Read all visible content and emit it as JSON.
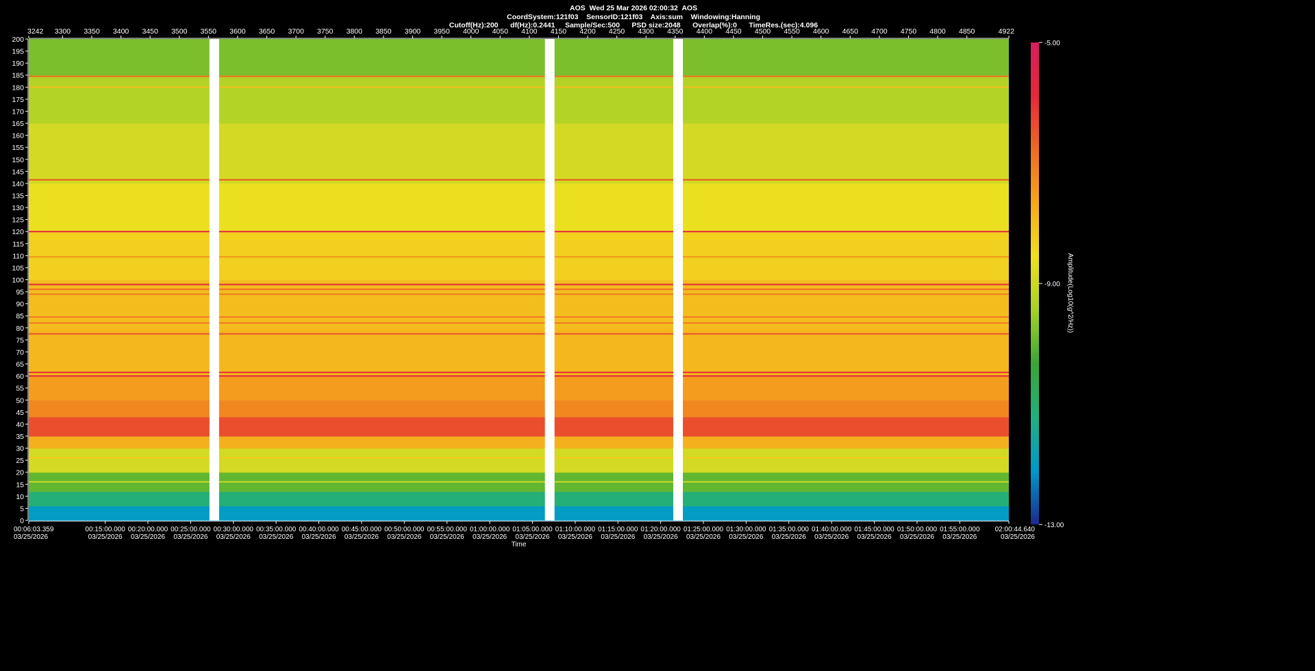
{
  "header": {
    "line1": "AOS  Wed 25 Mar 2026 02:00:32  AOS",
    "line2": "CoordSystem:121f03    SensorID:121f03    Axis:sum    Windowing:Hanning",
    "line3": "Cutoff(Hz):200      df(Hz):0.2441     Sample/Sec:500      PSD size:2048      Overlap(%):0      TimeRes.(sec):4.096"
  },
  "chart_data": {
    "type": "heatmap",
    "title": "AOS  Wed 25 Mar 2026 02:00:32  AOS",
    "ylim": [
      0,
      200
    ],
    "y_ticks": [
      0,
      5,
      10,
      15,
      20,
      25,
      30,
      35,
      40,
      45,
      50,
      55,
      60,
      65,
      70,
      75,
      80,
      85,
      90,
      95,
      100,
      105,
      110,
      115,
      120,
      125,
      130,
      135,
      140,
      145,
      150,
      155,
      160,
      165,
      170,
      175,
      180,
      185,
      190,
      195,
      200
    ],
    "top_axis": {
      "range": [
        3242,
        4922
      ],
      "ticks": [
        3300,
        3350,
        3400,
        3450,
        3500,
        3550,
        3600,
        3650,
        3700,
        3750,
        3800,
        3850,
        3900,
        3950,
        4000,
        4050,
        4100,
        4150,
        4200,
        4250,
        4300,
        4350,
        4400,
        4450,
        4500,
        4550,
        4600,
        4650,
        4700,
        4750,
        4800,
        4850
      ],
      "start_label": "3242",
      "end_label": "4922"
    },
    "x_axis": {
      "label": "Time",
      "start": "00:06:03.359",
      "end": "02:00:44.640",
      "ticks": [
        {
          "time": "00:06:03.359",
          "date": "03/25/2026"
        },
        {
          "time": "00:15:00.000",
          "date": "03/25/2026"
        },
        {
          "time": "00:20:00.000",
          "date": "03/25/2026"
        },
        {
          "time": "00:25:00.000",
          "date": "03/25/2026"
        },
        {
          "time": "00:30:00.000",
          "date": "03/25/2026"
        },
        {
          "time": "00:35:00.000",
          "date": "03/25/2026"
        },
        {
          "time": "00:40:00.000",
          "date": "03/25/2026"
        },
        {
          "time": "00:45:00.000",
          "date": "03/25/2026"
        },
        {
          "time": "00:50:00.000",
          "date": "03/25/2026"
        },
        {
          "time": "00:55:00.000",
          "date": "03/25/2026"
        },
        {
          "time": "01:00:00.000",
          "date": "03/25/2026"
        },
        {
          "time": "01:05:00.000",
          "date": "03/25/2026"
        },
        {
          "time": "01:10:00.000",
          "date": "03/25/2026"
        },
        {
          "time": "01:15:00.000",
          "date": "03/25/2026"
        },
        {
          "time": "01:20:00.000",
          "date": "03/25/2026"
        },
        {
          "time": "01:25:00.000",
          "date": "03/25/2026"
        },
        {
          "time": "01:30:00.000",
          "date": "03/25/2026"
        },
        {
          "time": "01:35:00.000",
          "date": "03/25/2026"
        },
        {
          "time": "01:40:00.000",
          "date": "03/25/2026"
        },
        {
          "time": "01:45:00.000",
          "date": "03/25/2026"
        },
        {
          "time": "01:50:00.000",
          "date": "03/25/2026"
        },
        {
          "time": "01:55:00.000",
          "date": "03/25/2026"
        },
        {
          "time": "02:00:44.640",
          "date": "03/25/2026"
        }
      ]
    },
    "data_gaps_top_axis": [
      3560,
      4135,
      4355
    ],
    "colorbar": {
      "label": "Amplitude(Log10(g^2/Hz))",
      "max_label": "-5.00",
      "mid_label": "-9.00",
      "min_label": "-13.00",
      "range": [
        -13,
        -5
      ],
      "colors": [
        "#1a2a8a",
        "#0099cc",
        "#20b080",
        "#3aa635",
        "#a8d028",
        "#f0e020",
        "#f5a81c",
        "#ef6a24",
        "#e5283a",
        "#d81e5e"
      ]
    },
    "bands": [
      {
        "from": 0,
        "to": 6,
        "level": -12.0
      },
      {
        "from": 6,
        "to": 12,
        "level": -11.1
      },
      {
        "from": 12,
        "to": 20,
        "level": -10.0
      },
      {
        "from": 20,
        "to": 30,
        "level": -8.9
      },
      {
        "from": 30,
        "to": 35,
        "level": -7.8
      },
      {
        "from": 35,
        "to": 43,
        "level": -6.4
      },
      {
        "from": 43,
        "to": 50,
        "level": -7.2
      },
      {
        "from": 50,
        "to": 60,
        "level": -7.5
      },
      {
        "from": 60,
        "to": 80,
        "level": -7.9
      },
      {
        "from": 80,
        "to": 100,
        "level": -8.0
      },
      {
        "from": 100,
        "to": 120,
        "level": -8.3
      },
      {
        "from": 120,
        "to": 140,
        "level": -8.6
      },
      {
        "from": 140,
        "to": 165,
        "level": -8.9
      },
      {
        "from": 165,
        "to": 185,
        "level": -9.3
      },
      {
        "from": 185,
        "to": 200,
        "level": -9.8
      }
    ],
    "lines_hz": [
      {
        "f": 16,
        "level": -9.0
      },
      {
        "f": 26,
        "level": -8.2
      },
      {
        "f": 60,
        "level": -5.8
      },
      {
        "f": 61.5,
        "level": -6.0
      },
      {
        "f": 77.5,
        "level": -6.4
      },
      {
        "f": 82,
        "level": -7.0
      },
      {
        "f": 84.5,
        "level": -7.0
      },
      {
        "f": 94,
        "level": -7.0
      },
      {
        "f": 96,
        "level": -6.8
      },
      {
        "f": 98,
        "level": -5.8
      },
      {
        "f": 109.5,
        "level": -7.4
      },
      {
        "f": 120,
        "level": -5.8
      },
      {
        "f": 141.5,
        "level": -6.5
      },
      {
        "f": 180,
        "level": -8.0
      },
      {
        "f": 184.5,
        "level": -6.8
      }
    ]
  }
}
